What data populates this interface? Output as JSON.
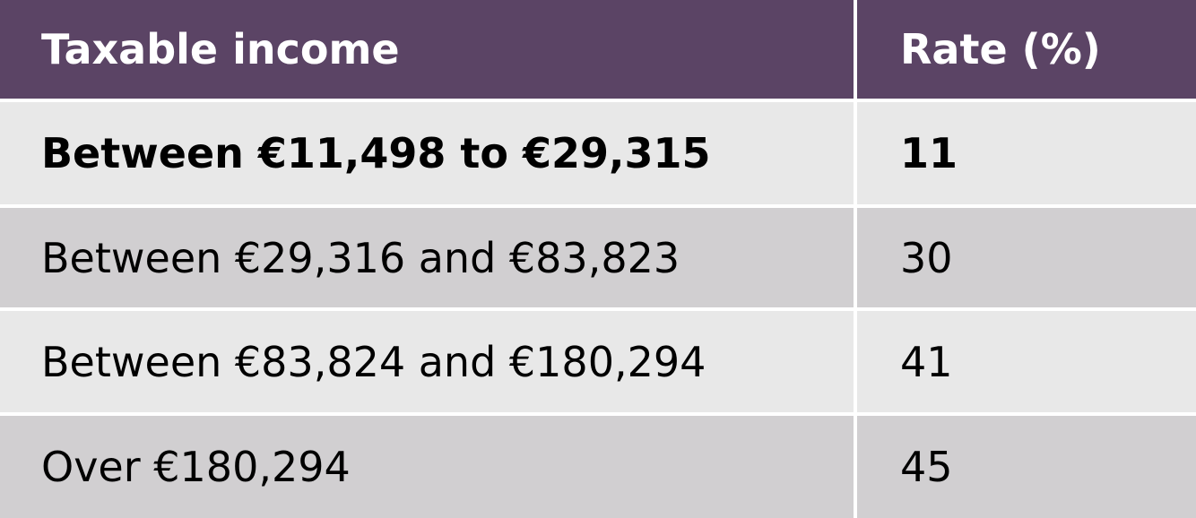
{
  "table": {
    "header": [
      "Taxable income",
      "Rate (%)"
    ],
    "rows": [
      [
        "Between €11,498 to €29,315",
        "11"
      ],
      [
        "Between €29,316 and €83,823",
        "30"
      ],
      [
        "Between €83,824 and €180,294",
        "41"
      ],
      [
        "Over €180,294",
        "45"
      ]
    ],
    "bold_rows": [
      0
    ]
  }
}
